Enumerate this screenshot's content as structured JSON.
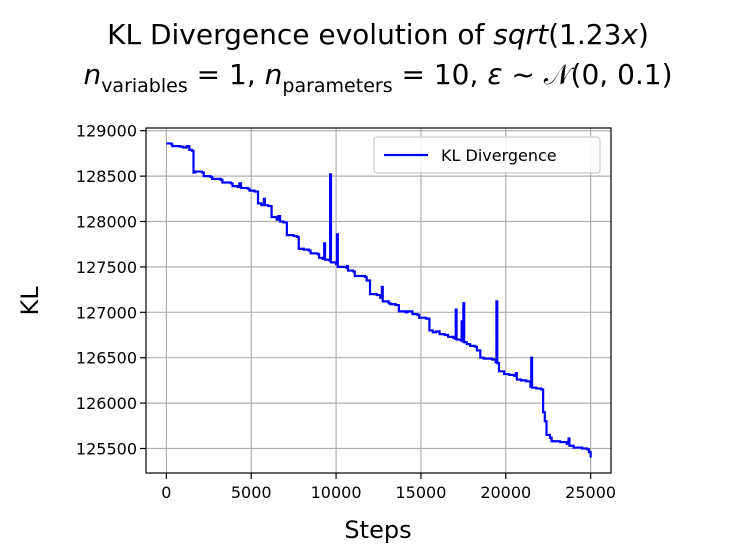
{
  "chart_data": {
    "type": "line",
    "title_line1_prefix": "KL Divergence evolution of ",
    "title_line1_func": "sqrt",
    "title_line1_arg": "(1.23",
    "title_line1_var": "x",
    "title_line1_close": ")",
    "title_line2": {
      "n": "n",
      "sub1": "variables",
      "eq1": " = 1, ",
      "sub2": "parameters",
      "eq2": " = 10, ",
      "eps": "ε",
      "tilde": " ~ ",
      "normal": "𝒩",
      "params": "(0, 0.1)"
    },
    "xlabel": "Steps",
    "ylabel": "KL",
    "xlim": [
      -1200,
      26200
    ],
    "ylim": [
      125230,
      129030
    ],
    "xticks": [
      0,
      5000,
      10000,
      15000,
      20000,
      25000
    ],
    "yticks": [
      125500,
      126000,
      126500,
      127000,
      127500,
      128000,
      128500,
      129000
    ],
    "grid": true,
    "legend": {
      "position": "top-right",
      "entries": [
        "KL Divergence"
      ]
    },
    "colors": {
      "line": "#0000ff"
    },
    "series": [
      {
        "name": "KL Divergence",
        "points": [
          [
            0,
            128860
          ],
          [
            300,
            128850
          ],
          [
            350,
            128830
          ],
          [
            800,
            128825
          ],
          [
            1000,
            128815
          ],
          [
            1200,
            128830
          ],
          [
            1350,
            128790
          ],
          [
            1500,
            128780
          ],
          [
            1600,
            128540
          ],
          [
            1700,
            128550
          ],
          [
            2100,
            128540
          ],
          [
            2200,
            128500
          ],
          [
            2600,
            128490
          ],
          [
            2700,
            128470
          ],
          [
            3200,
            128460
          ],
          [
            3300,
            128430
          ],
          [
            3800,
            128420
          ],
          [
            3900,
            128390
          ],
          [
            4200,
            128380
          ],
          [
            4300,
            128420
          ],
          [
            4400,
            128370
          ],
          [
            4800,
            128360
          ],
          [
            4900,
            128340
          ],
          [
            5200,
            128330
          ],
          [
            5400,
            128200
          ],
          [
            5600,
            128180
          ],
          [
            5750,
            128250
          ],
          [
            5800,
            128180
          ],
          [
            6000,
            128170
          ],
          [
            6200,
            128050
          ],
          [
            6500,
            128020
          ],
          [
            6600,
            128060
          ],
          [
            6700,
            128000
          ],
          [
            6900,
            127990
          ],
          [
            7100,
            127850
          ],
          [
            7500,
            127840
          ],
          [
            7700,
            127830
          ],
          [
            7800,
            127700
          ],
          [
            8100,
            127690
          ],
          [
            8400,
            127680
          ],
          [
            8500,
            127650
          ],
          [
            8900,
            127640
          ],
          [
            9000,
            127600
          ],
          [
            9200,
            127590
          ],
          [
            9300,
            127760
          ],
          [
            9350,
            127580
          ],
          [
            9600,
            127570
          ],
          [
            9650,
            128520
          ],
          [
            9700,
            127550
          ],
          [
            10000,
            127530
          ],
          [
            10050,
            127860
          ],
          [
            10100,
            127500
          ],
          [
            10600,
            127490
          ],
          [
            10650,
            127510
          ],
          [
            10700,
            127460
          ],
          [
            11000,
            127450
          ],
          [
            11100,
            127400
          ],
          [
            11700,
            127390
          ],
          [
            11800,
            127350
          ],
          [
            12000,
            127200
          ],
          [
            12400,
            127190
          ],
          [
            12600,
            127160
          ],
          [
            12700,
            127280
          ],
          [
            12750,
            127120
          ],
          [
            13100,
            127100
          ],
          [
            13200,
            127090
          ],
          [
            13500,
            127080
          ],
          [
            13700,
            127010
          ],
          [
            14100,
            127000
          ],
          [
            14200,
            127010
          ],
          [
            14500,
            126980
          ],
          [
            14800,
            126970
          ],
          [
            14900,
            126940
          ],
          [
            15300,
            126930
          ],
          [
            15500,
            126800
          ],
          [
            15700,
            126780
          ],
          [
            15900,
            126790
          ],
          [
            16100,
            126760
          ],
          [
            16400,
            126750
          ],
          [
            16600,
            126730
          ],
          [
            16900,
            126720
          ],
          [
            17000,
            126710
          ],
          [
            17050,
            127030
          ],
          [
            17100,
            126700
          ],
          [
            17350,
            126690
          ],
          [
            17400,
            126900
          ],
          [
            17450,
            126680
          ],
          [
            17500,
            127100
          ],
          [
            17550,
            126670
          ],
          [
            17700,
            126650
          ],
          [
            17900,
            126630
          ],
          [
            18200,
            126620
          ],
          [
            18300,
            126580
          ],
          [
            18500,
            126500
          ],
          [
            18700,
            126490
          ],
          [
            19200,
            126480
          ],
          [
            19400,
            126450
          ],
          [
            19450,
            127120
          ],
          [
            19500,
            126440
          ],
          [
            19600,
            126350
          ],
          [
            19900,
            126320
          ],
          [
            20200,
            126310
          ],
          [
            20500,
            126300
          ],
          [
            20600,
            126330
          ],
          [
            20650,
            126260
          ],
          [
            20900,
            126250
          ],
          [
            21200,
            126240
          ],
          [
            21450,
            126180
          ],
          [
            21500,
            126500
          ],
          [
            21550,
            126170
          ],
          [
            21800,
            126160
          ],
          [
            22100,
            126150
          ],
          [
            22200,
            125900
          ],
          [
            22300,
            125800
          ],
          [
            22400,
            125650
          ],
          [
            22600,
            125620
          ],
          [
            22700,
            125580
          ],
          [
            23200,
            125570
          ],
          [
            23600,
            125550
          ],
          [
            23700,
            125610
          ],
          [
            23750,
            125530
          ],
          [
            24000,
            125510
          ],
          [
            24500,
            125500
          ],
          [
            24800,
            125490
          ],
          [
            24900,
            125460
          ],
          [
            25000,
            125400
          ]
        ]
      }
    ]
  }
}
